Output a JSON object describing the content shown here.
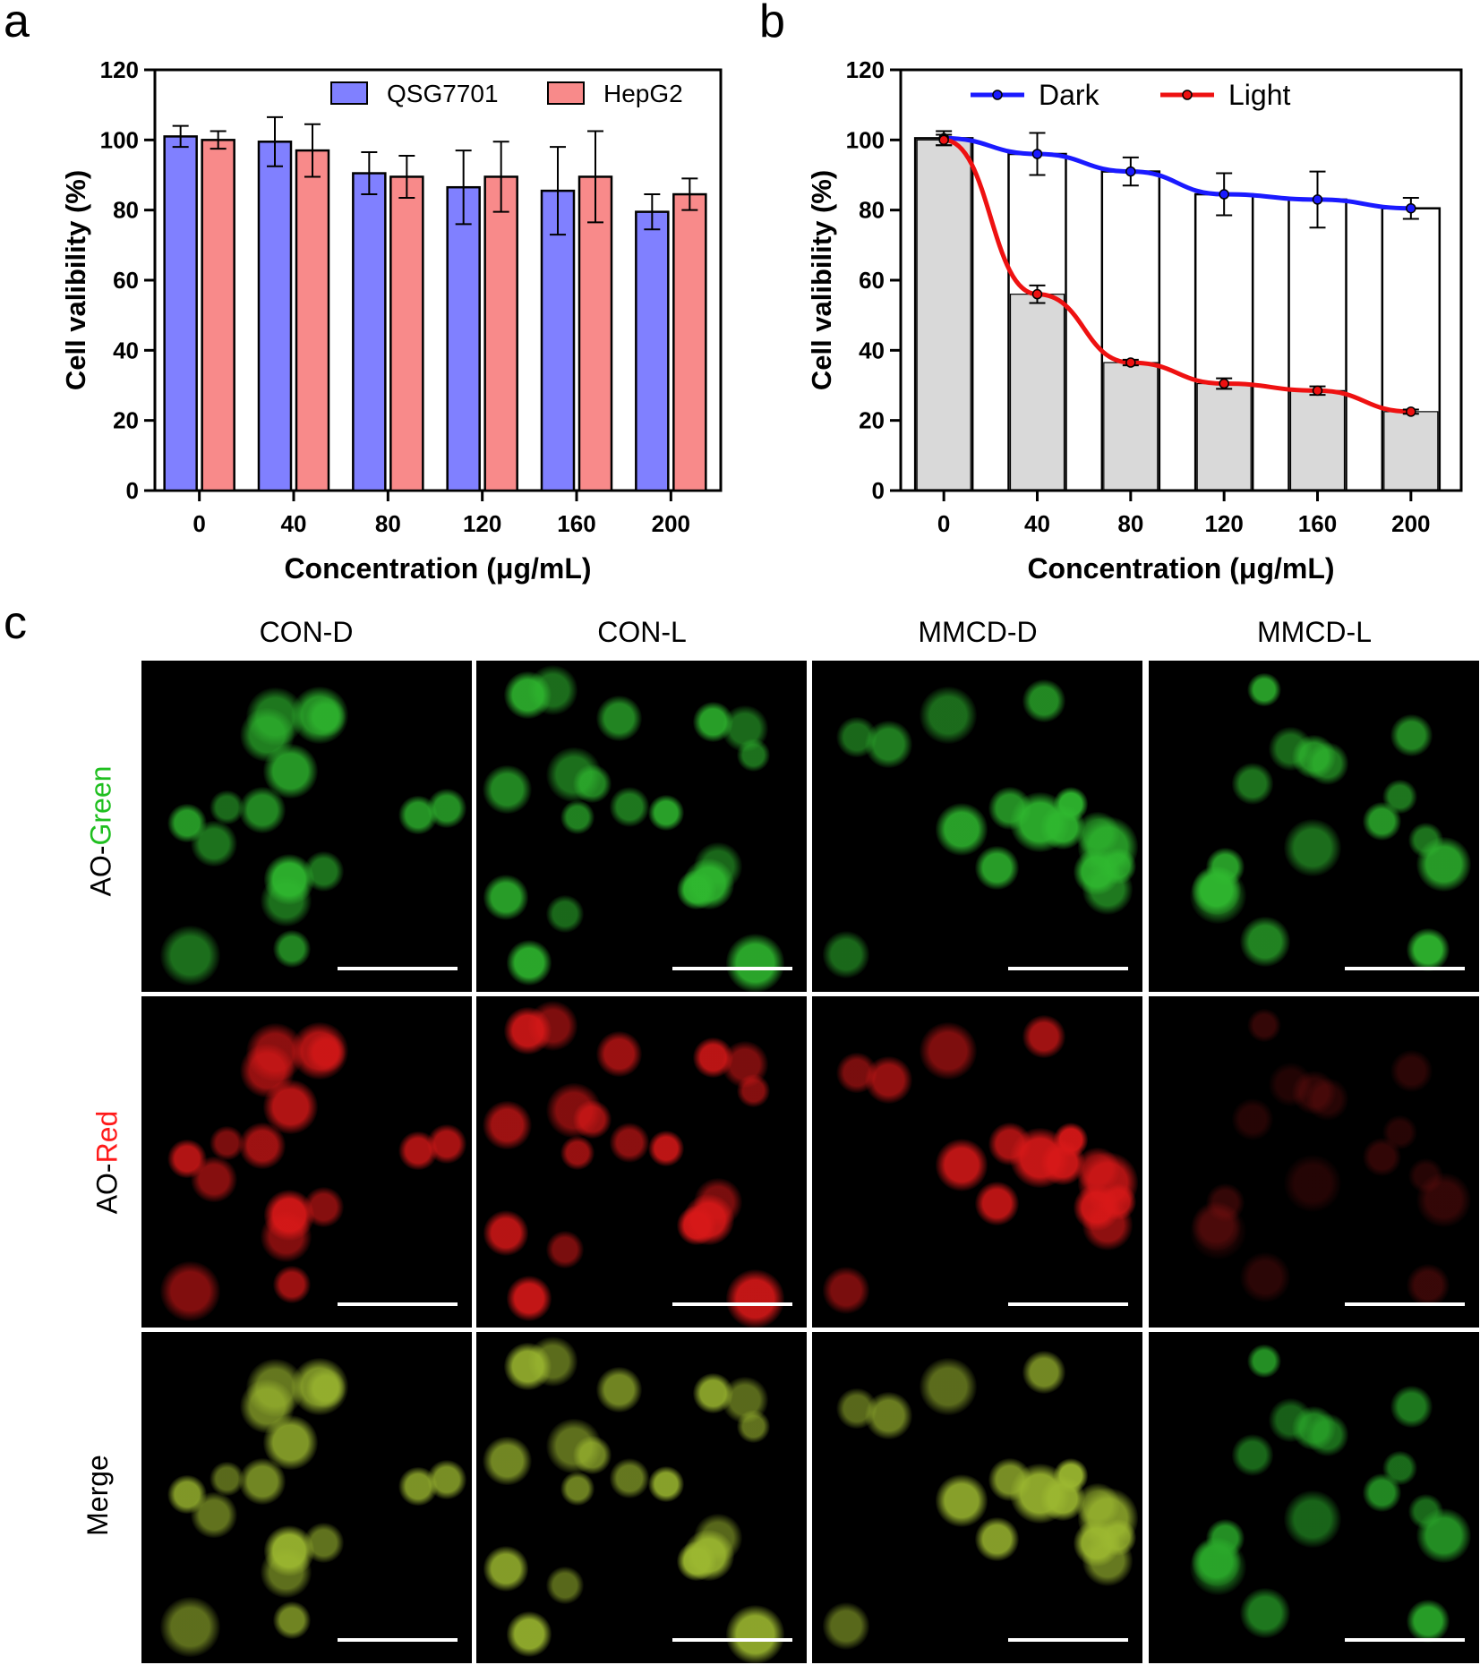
{
  "panels": {
    "a": {
      "letter": "a"
    },
    "b": {
      "letter": "b"
    },
    "c": {
      "letter": "c"
    }
  },
  "chart_data": [
    {
      "type": "bar",
      "title": "",
      "xlabel": "Concentration (μg/mL)",
      "ylabel": "Cell valibility (%)",
      "ylim": [
        0,
        120
      ],
      "yticks": [
        0,
        20,
        40,
        60,
        80,
        100,
        120
      ],
      "categories": [
        "0",
        "40",
        "80",
        "120",
        "160",
        "200"
      ],
      "legend_position": "top-right",
      "series": [
        {
          "name": "QSG7701",
          "color": "#8080ff",
          "values": [
            101,
            99.5,
            90.5,
            86.5,
            85.5,
            79.5
          ],
          "errors": [
            3,
            7,
            6,
            10.5,
            12.5,
            5
          ]
        },
        {
          "name": "HepG2",
          "color": "#f88a8a",
          "values": [
            100,
            97,
            89.5,
            89.5,
            89.5,
            84.5
          ],
          "errors": [
            2.5,
            7.5,
            6,
            10,
            13,
            4.5
          ]
        }
      ]
    },
    {
      "type": "line",
      "title": "",
      "xlabel": "Concentration (μg/mL)",
      "ylabel": "Cell valibility (%)",
      "ylim": [
        0,
        120
      ],
      "yticks": [
        0,
        20,
        40,
        60,
        80,
        100,
        120
      ],
      "categories": [
        "0",
        "40",
        "80",
        "120",
        "160",
        "200"
      ],
      "legend_position": "top-right",
      "series": [
        {
          "name": "Dark",
          "color": "#1a1aff",
          "values": [
            100.5,
            96,
            91,
            84.5,
            83,
            80.5
          ],
          "errors": [
            2,
            6,
            4,
            6,
            8,
            3
          ],
          "bar_fill": "#ffffff"
        },
        {
          "name": "Light",
          "color": "#ee1111",
          "values": [
            100,
            56,
            36.5,
            30.5,
            28.5,
            22.5
          ],
          "errors": [
            1.5,
            2.5,
            0.8,
            1.5,
            1.2,
            0.6
          ],
          "bar_fill": "#d9d9d9"
        }
      ]
    }
  ],
  "microscopy": {
    "columns": [
      "CON-D",
      "CON-L",
      "MMCD-D",
      "MMCD-L"
    ],
    "rows": [
      {
        "prefix": "AO-",
        "suffix": "Green",
        "suffix_color": "#1fbf1f",
        "cell_color": "#2fb82f"
      },
      {
        "prefix": "AO-",
        "suffix": "Red",
        "suffix_color": "#ff1a1a",
        "cell_color": "#d81818"
      },
      {
        "prefix": "Merge",
        "suffix": "",
        "suffix_color": "#000000",
        "cell_color": "#9cb830"
      }
    ]
  }
}
